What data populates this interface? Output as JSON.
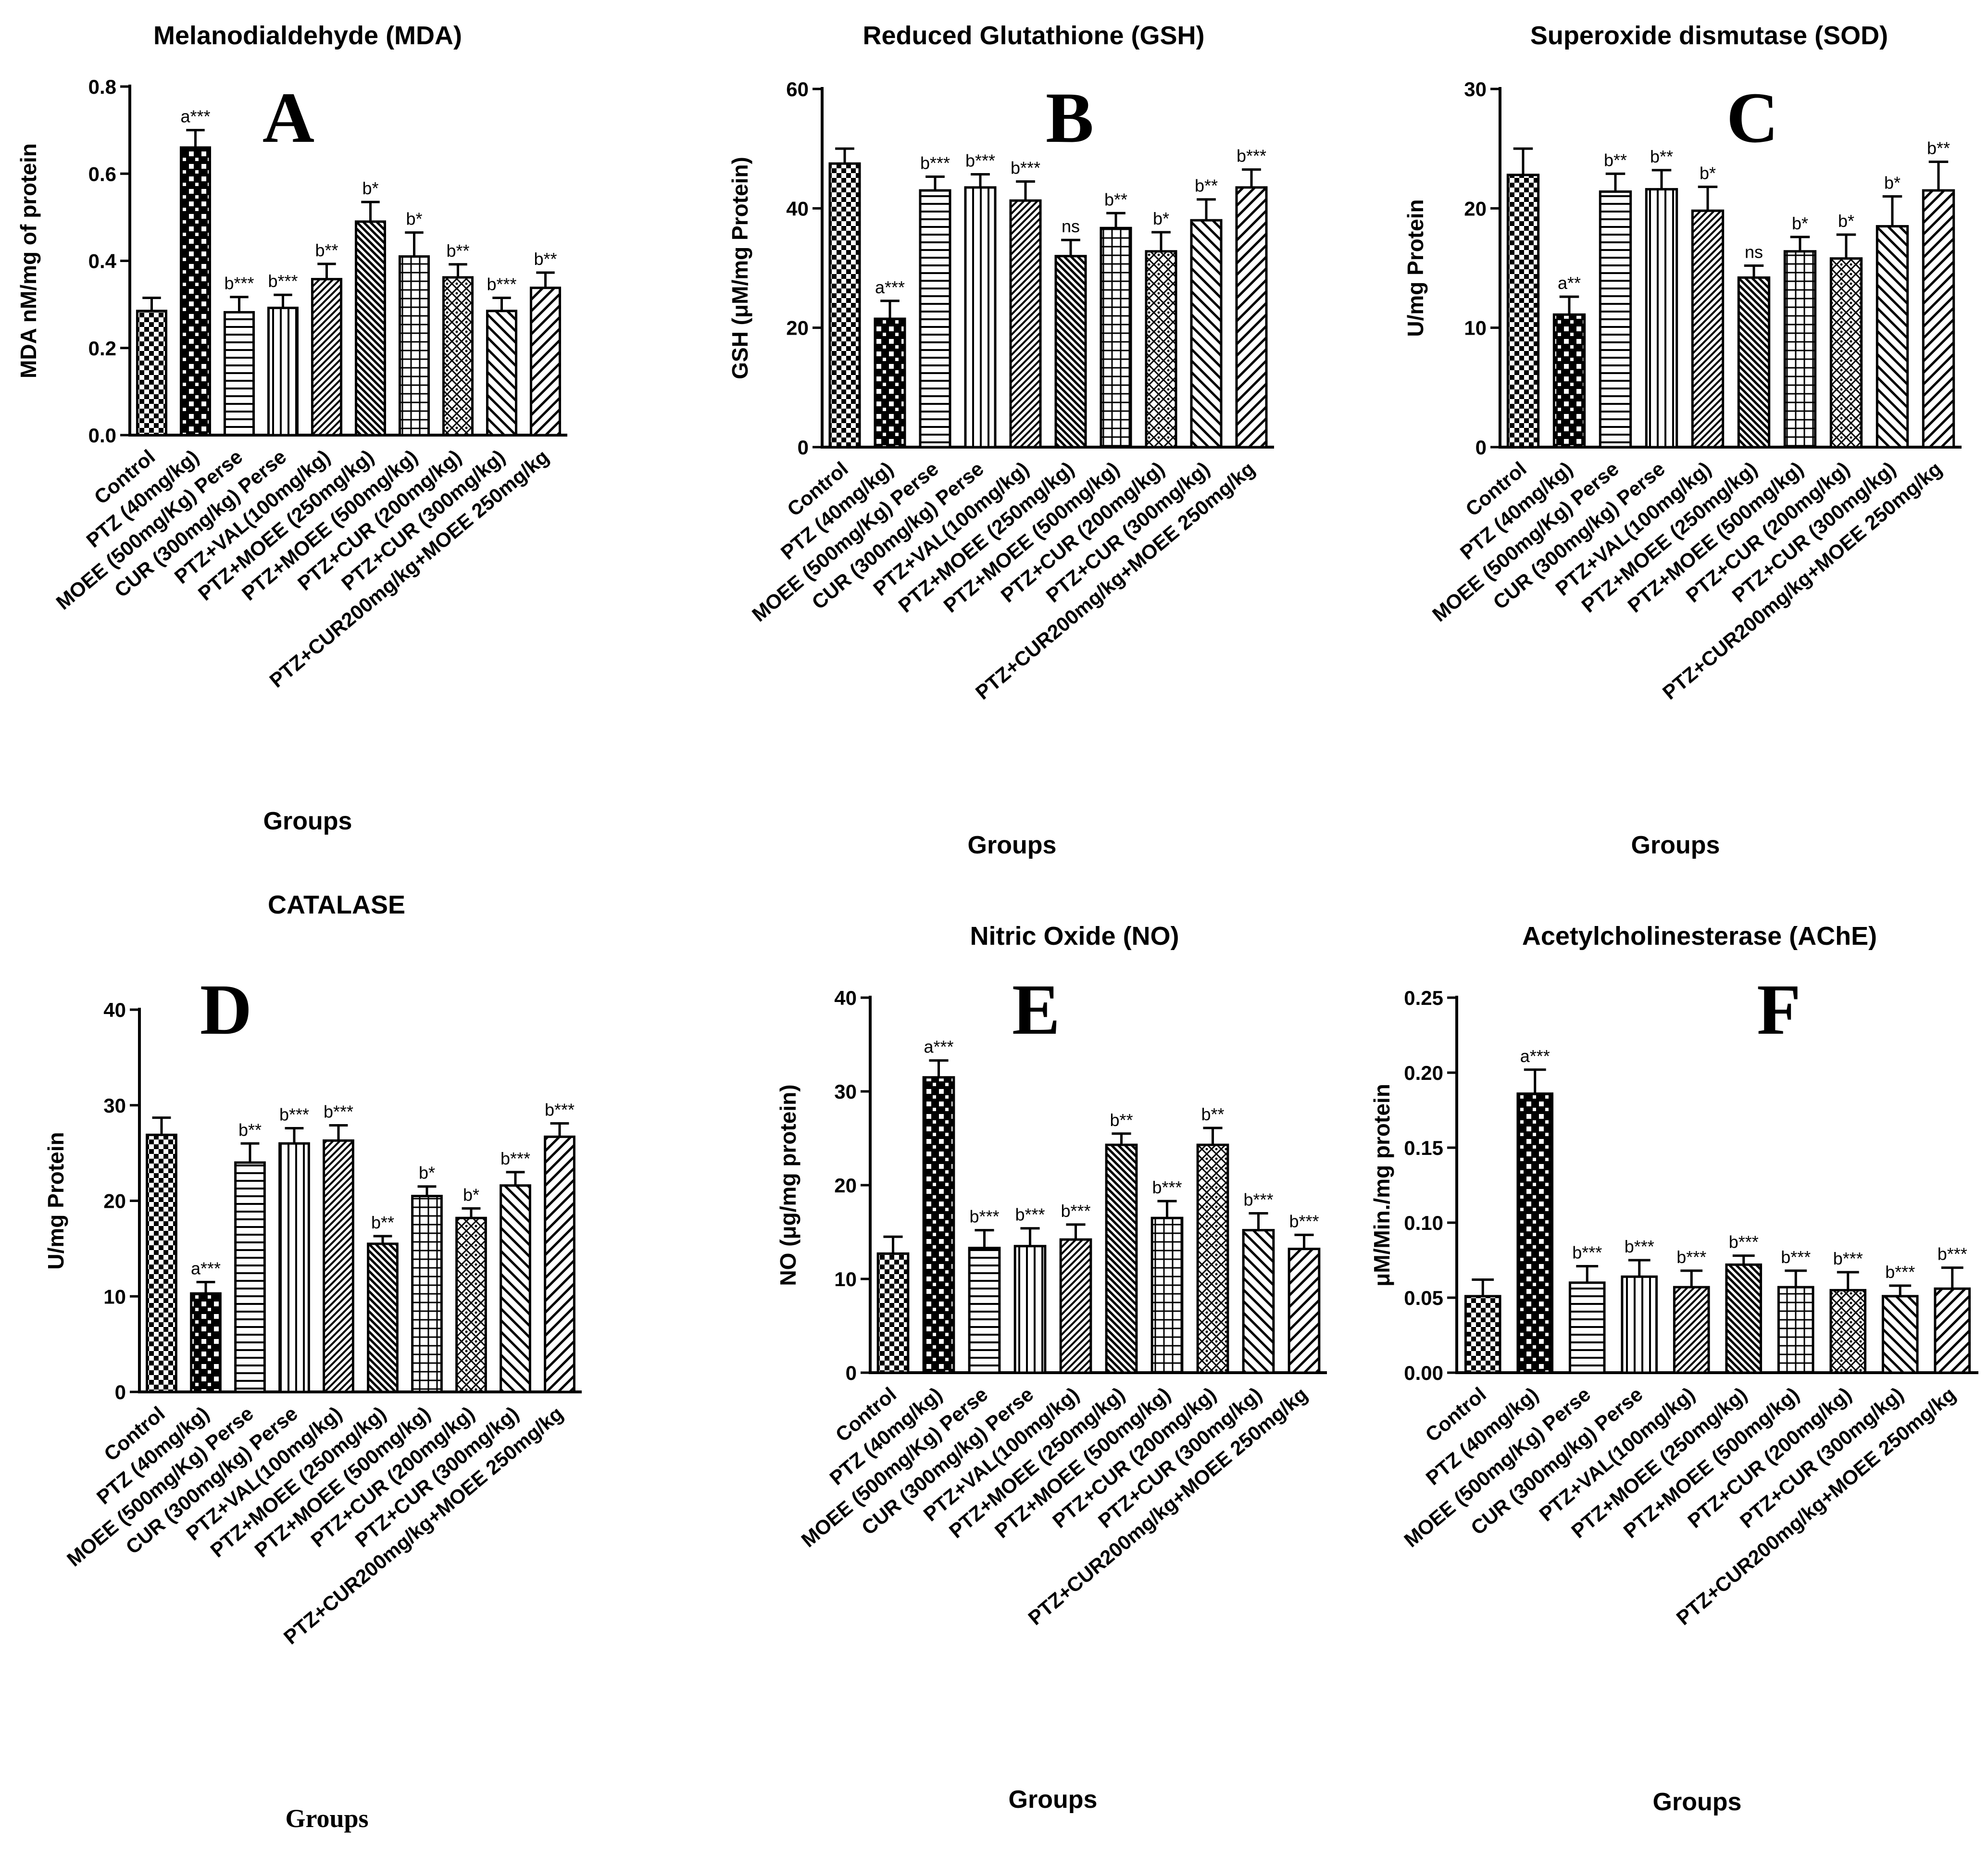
{
  "chart_data": [
    {
      "type": "bar",
      "panel_label": "A",
      "title": "Melanodialdehyde (MDA)",
      "xlabel": "Groups",
      "ylabel": "MDA nM/mg of protein",
      "ylim": [
        0,
        0.8
      ],
      "yticks": [
        "0.0",
        "0.2",
        "0.4",
        "0.6",
        "0.8"
      ],
      "categories": [
        "Control",
        "PTZ (40mg/kg)",
        "MOEE (500mg/Kg) Perse",
        "CUR (300mg/kg) Perse",
        "PTZ+VAL(100mg/kg)",
        "PTZ+MOEE (250mg/kg)",
        "PTZ+MOEE (500mg/kg)",
        "PTZ+CUR (200mg/kg)",
        "PTZ+CUR (300mg/kg)",
        "PTZ+CUR200mg/kg+MOEE 250mg/kg"
      ],
      "values": [
        0.285,
        0.66,
        0.282,
        0.292,
        0.358,
        0.49,
        0.41,
        0.362,
        0.285,
        0.338
      ],
      "errors": [
        0.03,
        0.04,
        0.035,
        0.03,
        0.035,
        0.045,
        0.055,
        0.03,
        0.03,
        0.035
      ],
      "annotations": [
        "",
        "a***",
        "b***",
        "b***",
        "b**",
        "b*",
        "b*",
        "b**",
        "b***",
        "b**"
      ]
    },
    {
      "type": "bar",
      "panel_label": "B",
      "title": "Reduced Glutathione (GSH)",
      "xlabel": "Groups",
      "ylabel": "GSH (μM/mg Protein)",
      "ylim": [
        0,
        60
      ],
      "yticks": [
        "0",
        "20",
        "40",
        "60"
      ],
      "categories": [
        "Control",
        "PTZ (40mg/kg)",
        "MOEE (500mg/Kg) Perse",
        "CUR (300mg/kg) Perse",
        "PTZ+VAL(100mg/kg)",
        "PTZ+MOEE (250mg/kg)",
        "PTZ+MOEE (500mg/kg)",
        "PTZ+CUR (200mg/kg)",
        "PTZ+CUR (300mg/kg)",
        "PTZ+CUR200mg/kg+MOEE 250mg/kg"
      ],
      "values": [
        47.5,
        21.5,
        43,
        43.5,
        41.3,
        32,
        36.7,
        32.8,
        38,
        43.5
      ],
      "errors": [
        2.5,
        3,
        2.3,
        2.2,
        3.2,
        2.7,
        2.5,
        3.2,
        3.5,
        3
      ],
      "annotations": [
        "",
        "a***",
        "b***",
        "b***",
        "b***",
        "ns",
        "b**",
        "b*",
        "b**",
        "b***"
      ]
    },
    {
      "type": "bar",
      "panel_label": "C",
      "title": "Superoxide dismutase (SOD)",
      "xlabel": "Groups",
      "ylabel": "U/mg Protein",
      "ylim": [
        0,
        30
      ],
      "yticks": [
        "0",
        "10",
        "20",
        "30"
      ],
      "categories": [
        "Control",
        "PTZ (40mg/kg)",
        "MOEE (500mg/Kg) Perse",
        "CUR (300mg/kg) Perse",
        "PTZ+VAL(100mg/kg)",
        "PTZ+MOEE (250mg/kg)",
        "PTZ+MOEE (500mg/kg)",
        "PTZ+CUR (200mg/kg)",
        "PTZ+CUR (300mg/kg)",
        "PTZ+CUR200mg/kg+MOEE 250mg/kg"
      ],
      "values": [
        22.8,
        11.1,
        21.4,
        21.6,
        19.8,
        14.2,
        16.4,
        15.8,
        18.5,
        21.5
      ],
      "errors": [
        2.2,
        1.5,
        1.5,
        1.6,
        2,
        1,
        1.2,
        2,
        2.5,
        2.4
      ],
      "annotations": [
        "",
        "a**",
        "b**",
        "b**",
        "b*",
        "ns",
        "b*",
        "b*",
        "b*",
        "b**"
      ]
    },
    {
      "type": "bar",
      "panel_label": "D",
      "title": "CATALASE",
      "xlabel": "Groups",
      "ylabel": "U/mg Protein",
      "ylim": [
        0,
        40
      ],
      "yticks": [
        "0",
        "10",
        "20",
        "30",
        "40"
      ],
      "categories": [
        "Control",
        "PTZ (40mg/kg)",
        "MOEE (500mg/Kg) Perse",
        "CUR (300mg/kg) Perse",
        "PTZ+VAL(100mg/kg)",
        "PTZ+MOEE (250mg/kg)",
        "PTZ+MOEE (500mg/kg)",
        "PTZ+CUR (200mg/kg)",
        "PTZ+CUR (300mg/kg)",
        "PTZ+CUR200mg/kg+MOEE 250mg/kg"
      ],
      "values": [
        26.9,
        10.3,
        24,
        26,
        26.3,
        15.5,
        20.5,
        18.2,
        21.6,
        26.7
      ],
      "errors": [
        1.8,
        1.2,
        2,
        1.6,
        1.6,
        0.8,
        1,
        1,
        1.4,
        1.4
      ],
      "annotations": [
        "",
        "a***",
        "b**",
        "b***",
        "b***",
        "b**",
        "b*",
        "b*",
        "b***",
        "b***"
      ]
    },
    {
      "type": "bar",
      "panel_label": "E",
      "title": "Nitric Oxide (NO)",
      "xlabel": "Groups",
      "ylabel": "NO (μg/mg protein)",
      "ylim": [
        0,
        40
      ],
      "yticks": [
        "0",
        "10",
        "20",
        "30",
        "40"
      ],
      "categories": [
        "Control",
        "PTZ (40mg/kg)",
        "MOEE (500mg/Kg) Perse",
        "CUR (300mg/kg) Perse",
        "PTZ+VAL(100mg/kg)",
        "PTZ+MOEE (250mg/kg)",
        "PTZ+MOEE (500mg/kg)",
        "PTZ+CUR (200mg/kg)",
        "PTZ+CUR (300mg/kg)",
        "PTZ+CUR200mg/kg+MOEE 250mg/kg"
      ],
      "values": [
        12.7,
        31.5,
        13.3,
        13.5,
        14.2,
        24.3,
        16.5,
        24.3,
        15.2,
        13.2
      ],
      "errors": [
        1.8,
        1.8,
        1.9,
        1.9,
        1.6,
        1.2,
        1.8,
        1.8,
        1.8,
        1.5
      ],
      "annotations": [
        "",
        "a***",
        "b***",
        "b***",
        "b***",
        "b**",
        "b***",
        "b**",
        "b***",
        "b***"
      ]
    },
    {
      "type": "bar",
      "panel_label": "F",
      "title": "Acetylcholinesterase (AChE)",
      "xlabel": "Groups",
      "ylabel": "μM/Min./mg protein",
      "ylim": [
        0,
        0.25
      ],
      "yticks": [
        "0.00",
        "0.05",
        "0.10",
        "0.15",
        "0.20",
        "0.25"
      ],
      "categories": [
        "Control",
        "PTZ (40mg/kg)",
        "MOEE (500mg/Kg) Perse",
        "CUR (300mg/kg) Perse",
        "PTZ+VAL(100mg/kg)",
        "PTZ+MOEE (250mg/kg)",
        "PTZ+MOEE (500mg/kg)",
        "PTZ+CUR (200mg/kg)",
        "PTZ+CUR (300mg/kg)",
        "PTZ+CUR200mg/kg+MOEE 250mg/kg"
      ],
      "values": [
        0.051,
        0.186,
        0.06,
        0.064,
        0.057,
        0.072,
        0.057,
        0.055,
        0.051,
        0.056
      ],
      "errors": [
        0.011,
        0.016,
        0.011,
        0.011,
        0.011,
        0.006,
        0.011,
        0.012,
        0.007,
        0.014
      ],
      "annotations": [
        "",
        "a***",
        "b***",
        "b***",
        "b***",
        "b***",
        "b***",
        "b***",
        "b***",
        "b***"
      ]
    }
  ]
}
